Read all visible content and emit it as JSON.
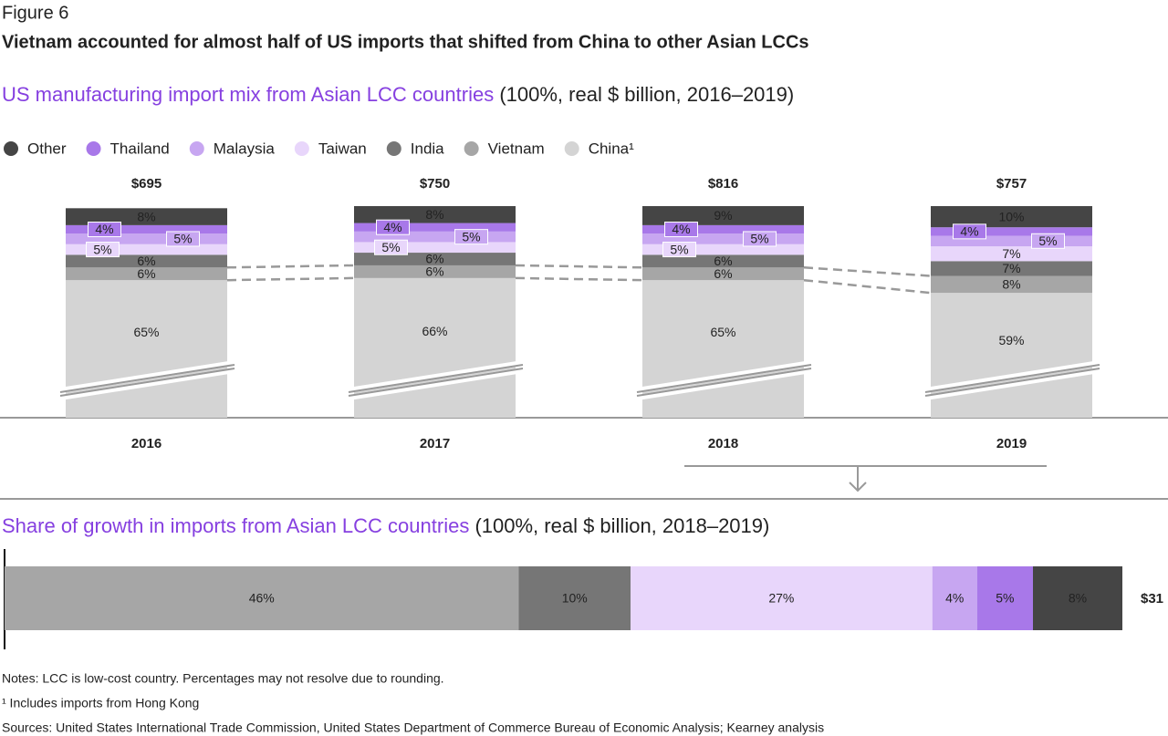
{
  "figure_label": "Figure 6",
  "title": "Vietnam accounted for almost half of US imports that shifted from  China to other Asian LCCs",
  "notes": [
    "Notes: LCC is low-cost country. Percentages may not resolve due to rounding.",
    "¹ Includes imports from Hong Kong",
    "Sources: United States International Trade Commission, United States Department of Commerce Bureau of Economic Analysis; Kearney analysis"
  ],
  "chart_data": [
    {
      "type": "stacked_bar",
      "subtitle": "US manufacturing import mix from Asian LCC countries",
      "subtitle_note": "(100%, real $ billion, 2016–2019)",
      "categories": [
        "2016",
        "2017",
        "2018",
        "2019"
      ],
      "totals": {
        "values": [
          695,
          750,
          816,
          757
        ],
        "value_labels": [
          "$695",
          "$750",
          "$816",
          "$757"
        ]
      },
      "ylim": [
        0,
        100
      ],
      "series": [
        {
          "name": "China¹",
          "color": "#d4d4d4",
          "values": [
            65,
            66,
            65,
            59
          ],
          "value_labels": [
            "65%",
            "66%",
            "65%",
            "59%"
          ]
        },
        {
          "name": "Vietnam",
          "color": "#a6a6a6",
          "values": [
            6,
            6,
            6,
            8
          ],
          "value_labels": [
            "6%",
            "6%",
            "6%",
            "8%"
          ]
        },
        {
          "name": "India",
          "color": "#767676",
          "values": [
            6,
            6,
            6,
            7
          ],
          "value_labels": [
            "6%",
            "6%",
            "6%",
            "7%"
          ]
        },
        {
          "name": "Taiwan",
          "color": "#e8d6fb",
          "values": [
            5,
            5,
            5,
            7
          ],
          "value_labels": [
            "5%",
            "5%",
            "5%",
            "7%"
          ]
        },
        {
          "name": "Malaysia",
          "color": "#c7a6f1",
          "values": [
            5,
            5,
            5,
            5
          ],
          "value_labels": [
            "5%",
            "5%",
            "5%",
            "5%"
          ]
        },
        {
          "name": "Thailand",
          "color": "#a878e9",
          "values": [
            4,
            4,
            4,
            4
          ],
          "value_labels": [
            "4%",
            "4%",
            "4%",
            "4%"
          ]
        },
        {
          "name": "Other",
          "color": "#454545",
          "values": [
            8,
            8,
            9,
            10
          ],
          "value_labels": [
            "8%",
            "8%",
            "9%",
            "10%"
          ]
        }
      ]
    },
    {
      "type": "stacked_hbar",
      "subtitle": "Share of growth in imports from Asian LCC countries",
      "subtitle_note": "(100%, real $ billion, 2018–2019)",
      "xlim": [
        0,
        100
      ],
      "total": 31,
      "total_label": "$31",
      "series": [
        {
          "name": "Vietnam",
          "color": "#a6a6a6",
          "values": [
            46
          ],
          "value_labels": [
            "46%"
          ]
        },
        {
          "name": "India",
          "color": "#767676",
          "values": [
            10
          ],
          "value_labels": [
            "10%"
          ]
        },
        {
          "name": "Taiwan",
          "color": "#e8d6fb",
          "values": [
            27
          ],
          "value_labels": [
            "27%"
          ]
        },
        {
          "name": "Malaysia",
          "color": "#c7a6f1",
          "values": [
            4
          ],
          "value_labels": [
            "4%"
          ]
        },
        {
          "name": "Thailand",
          "color": "#a878e9",
          "values": [
            5
          ],
          "value_labels": [
            "5%"
          ]
        },
        {
          "name": "Other",
          "color": "#454545",
          "values": [
            8
          ],
          "value_labels": [
            "8%"
          ]
        }
      ]
    }
  ]
}
